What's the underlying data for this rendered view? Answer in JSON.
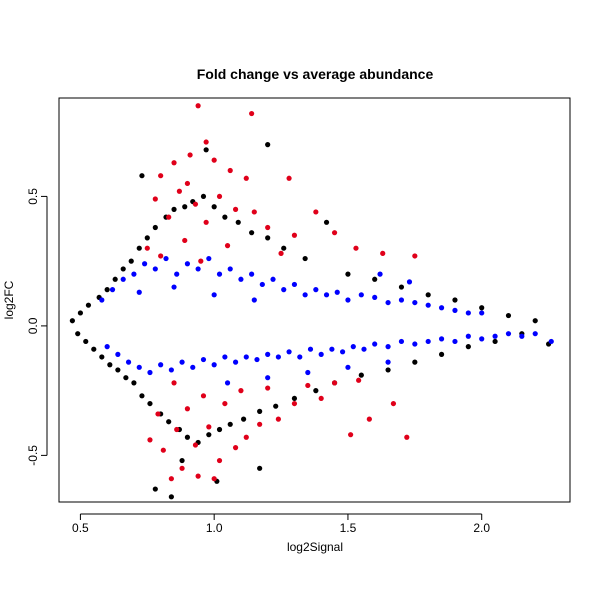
{
  "chart_data": {
    "type": "scatter",
    "title": "Fold change vs average abundance",
    "xlabel": "log2Signal",
    "ylabel": "log2FC",
    "xlim": [
      0.42,
      2.33
    ],
    "ylim": [
      -0.68,
      0.88
    ],
    "xticks": [
      0.5,
      1.0,
      1.5,
      2.0
    ],
    "xtick_labels": [
      "0.5",
      "1.0",
      "1.5",
      "2.0"
    ],
    "yticks": [
      -0.5,
      0.0,
      0.5
    ],
    "ytick_labels": [
      "-0.5",
      "0.0",
      "0.5"
    ],
    "grid": false,
    "legend": "none",
    "series": [
      {
        "color": "#000000",
        "points": [
          [
            0.47,
            0.02
          ],
          [
            0.49,
            -0.03
          ],
          [
            0.5,
            0.05
          ],
          [
            0.52,
            -0.06
          ],
          [
            0.53,
            0.08
          ],
          [
            0.55,
            -0.09
          ],
          [
            0.57,
            0.11
          ],
          [
            0.58,
            -0.12
          ],
          [
            0.6,
            0.14
          ],
          [
            0.61,
            -0.15
          ],
          [
            0.63,
            0.18
          ],
          [
            0.64,
            -0.17
          ],
          [
            0.66,
            0.22
          ],
          [
            0.67,
            -0.2
          ],
          [
            0.69,
            0.25
          ],
          [
            0.7,
            -0.22
          ],
          [
            0.72,
            0.3
          ],
          [
            0.73,
            -0.27
          ],
          [
            0.75,
            0.34
          ],
          [
            0.76,
            -0.3
          ],
          [
            0.78,
            0.38
          ],
          [
            0.8,
            -0.34
          ],
          [
            0.82,
            0.42
          ],
          [
            0.83,
            -0.37
          ],
          [
            0.85,
            0.45
          ],
          [
            0.87,
            -0.4
          ],
          [
            0.89,
            0.46
          ],
          [
            0.9,
            -0.43
          ],
          [
            0.92,
            0.48
          ],
          [
            0.94,
            -0.45
          ],
          [
            0.96,
            0.5
          ],
          [
            0.98,
            -0.42
          ],
          [
            1.0,
            0.46
          ],
          [
            1.02,
            -0.4
          ],
          [
            1.04,
            0.42
          ],
          [
            1.06,
            -0.38
          ],
          [
            1.09,
            0.4
          ],
          [
            1.11,
            -0.36
          ],
          [
            1.14,
            0.36
          ],
          [
            1.17,
            -0.33
          ],
          [
            1.2,
            0.34
          ],
          [
            1.23,
            -0.31
          ],
          [
            1.26,
            0.3
          ],
          [
            1.3,
            -0.28
          ],
          [
            1.34,
            0.26
          ],
          [
            1.38,
            -0.25
          ],
          [
            1.42,
            0.4
          ],
          [
            1.45,
            -0.22
          ],
          [
            1.5,
            0.2
          ],
          [
            1.55,
            -0.19
          ],
          [
            1.6,
            0.18
          ],
          [
            1.65,
            -0.17
          ],
          [
            1.7,
            0.15
          ],
          [
            1.75,
            -0.14
          ],
          [
            1.8,
            0.12
          ],
          [
            1.85,
            -0.11
          ],
          [
            1.9,
            0.1
          ],
          [
            1.95,
            -0.08
          ],
          [
            2.0,
            0.07
          ],
          [
            2.05,
            -0.06
          ],
          [
            2.1,
            0.04
          ],
          [
            2.15,
            -0.03
          ],
          [
            2.2,
            0.02
          ],
          [
            2.25,
            -0.07
          ],
          [
            0.78,
            -0.63
          ],
          [
            0.84,
            -0.66
          ],
          [
            1.2,
            0.7
          ],
          [
            1.01,
            -0.6
          ],
          [
            0.73,
            0.58
          ],
          [
            0.97,
            0.68
          ],
          [
            0.88,
            -0.52
          ],
          [
            1.17,
            -0.55
          ]
        ]
      },
      {
        "color": "#e0001a",
        "points": [
          [
            0.94,
            0.85
          ],
          [
            1.14,
            0.82
          ],
          [
            0.97,
            0.71
          ],
          [
            0.91,
            0.66
          ],
          [
            1.0,
            0.64
          ],
          [
            0.85,
            0.63
          ],
          [
            1.06,
            0.6
          ],
          [
            0.8,
            0.58
          ],
          [
            1.12,
            0.57
          ],
          [
            0.9,
            0.55
          ],
          [
            1.28,
            0.57
          ],
          [
            0.87,
            0.52
          ],
          [
            1.02,
            0.5
          ],
          [
            0.78,
            0.49
          ],
          [
            0.93,
            0.47
          ],
          [
            1.08,
            0.45
          ],
          [
            1.15,
            0.44
          ],
          [
            0.83,
            0.42
          ],
          [
            0.97,
            0.4
          ],
          [
            1.2,
            0.38
          ],
          [
            1.38,
            0.44
          ],
          [
            1.3,
            0.35
          ],
          [
            1.45,
            0.36
          ],
          [
            1.53,
            0.3
          ],
          [
            0.75,
            0.3
          ],
          [
            0.89,
            0.33
          ],
          [
            1.05,
            0.31
          ],
          [
            1.25,
            0.28
          ],
          [
            1.63,
            0.28
          ],
          [
            1.75,
            0.27
          ],
          [
            0.8,
            0.27
          ],
          [
            0.95,
            0.25
          ],
          [
            0.84,
            -0.59
          ],
          [
            0.94,
            -0.58
          ],
          [
            1.0,
            -0.59
          ],
          [
            0.88,
            -0.55
          ],
          [
            1.02,
            -0.52
          ],
          [
            0.81,
            -0.48
          ],
          [
            0.93,
            -0.46
          ],
          [
            1.08,
            -0.47
          ],
          [
            0.76,
            -0.44
          ],
          [
            1.12,
            -0.43
          ],
          [
            0.86,
            -0.4
          ],
          [
            0.98,
            -0.39
          ],
          [
            1.17,
            -0.38
          ],
          [
            1.24,
            -0.36
          ],
          [
            1.51,
            -0.42
          ],
          [
            1.72,
            -0.43
          ],
          [
            0.79,
            -0.34
          ],
          [
            0.9,
            -0.32
          ],
          [
            1.04,
            -0.3
          ],
          [
            1.3,
            -0.3
          ],
          [
            1.4,
            -0.28
          ],
          [
            1.58,
            -0.36
          ],
          [
            1.67,
            -0.3
          ],
          [
            0.96,
            -0.27
          ],
          [
            1.1,
            -0.25
          ],
          [
            1.2,
            -0.24
          ],
          [
            1.35,
            -0.23
          ],
          [
            1.45,
            -0.22
          ],
          [
            1.54,
            -0.21
          ],
          [
            0.85,
            -0.22
          ]
        ]
      },
      {
        "color": "#0000ff",
        "points": [
          [
            0.58,
            0.1
          ],
          [
            0.62,
            0.14
          ],
          [
            0.66,
            0.18
          ],
          [
            0.7,
            0.2
          ],
          [
            0.74,
            0.24
          ],
          [
            0.78,
            0.22
          ],
          [
            0.82,
            0.26
          ],
          [
            0.86,
            0.2
          ],
          [
            0.9,
            0.24
          ],
          [
            0.94,
            0.22
          ],
          [
            0.98,
            0.26
          ],
          [
            1.02,
            0.2
          ],
          [
            1.06,
            0.22
          ],
          [
            1.1,
            0.18
          ],
          [
            1.14,
            0.2
          ],
          [
            1.18,
            0.16
          ],
          [
            1.22,
            0.18
          ],
          [
            1.26,
            0.14
          ],
          [
            1.3,
            0.16
          ],
          [
            1.34,
            0.12
          ],
          [
            1.38,
            0.14
          ],
          [
            1.42,
            0.12
          ],
          [
            1.46,
            0.13
          ],
          [
            1.5,
            0.1
          ],
          [
            1.55,
            0.12
          ],
          [
            1.6,
            0.11
          ],
          [
            1.65,
            0.09
          ],
          [
            1.7,
            0.1
          ],
          [
            1.75,
            0.09
          ],
          [
            1.8,
            0.08
          ],
          [
            1.85,
            0.07
          ],
          [
            1.9,
            0.06
          ],
          [
            1.95,
            0.05
          ],
          [
            2.0,
            0.05
          ],
          [
            1.62,
            0.2
          ],
          [
            1.73,
            0.17
          ],
          [
            0.72,
            0.13
          ],
          [
            0.85,
            0.15
          ],
          [
            1.0,
            0.12
          ],
          [
            1.15,
            0.1
          ],
          [
            0.6,
            -0.08
          ],
          [
            0.64,
            -0.11
          ],
          [
            0.68,
            -0.14
          ],
          [
            0.72,
            -0.16
          ],
          [
            0.76,
            -0.18
          ],
          [
            0.8,
            -0.15
          ],
          [
            0.84,
            -0.17
          ],
          [
            0.88,
            -0.14
          ],
          [
            0.92,
            -0.16
          ],
          [
            0.96,
            -0.13
          ],
          [
            1.0,
            -0.15
          ],
          [
            1.04,
            -0.12
          ],
          [
            1.08,
            -0.14
          ],
          [
            1.12,
            -0.12
          ],
          [
            1.16,
            -0.13
          ],
          [
            1.2,
            -0.11
          ],
          [
            1.24,
            -0.12
          ],
          [
            1.28,
            -0.1
          ],
          [
            1.32,
            -0.12
          ],
          [
            1.36,
            -0.09
          ],
          [
            1.4,
            -0.11
          ],
          [
            1.44,
            -0.09
          ],
          [
            1.48,
            -0.1
          ],
          [
            1.52,
            -0.08
          ],
          [
            1.56,
            -0.09
          ],
          [
            1.6,
            -0.07
          ],
          [
            1.65,
            -0.08
          ],
          [
            1.7,
            -0.06
          ],
          [
            1.75,
            -0.07
          ],
          [
            1.8,
            -0.06
          ],
          [
            1.85,
            -0.05
          ],
          [
            1.9,
            -0.06
          ],
          [
            1.95,
            -0.04
          ],
          [
            2.0,
            -0.05
          ],
          [
            2.05,
            -0.04
          ],
          [
            2.1,
            -0.03
          ],
          [
            2.15,
            -0.04
          ],
          [
            2.2,
            -0.03
          ],
          [
            2.26,
            -0.06
          ],
          [
            1.35,
            -0.18
          ],
          [
            1.5,
            -0.16
          ],
          [
            1.65,
            -0.14
          ],
          [
            1.2,
            -0.2
          ],
          [
            1.05,
            -0.22
          ]
        ]
      }
    ]
  }
}
